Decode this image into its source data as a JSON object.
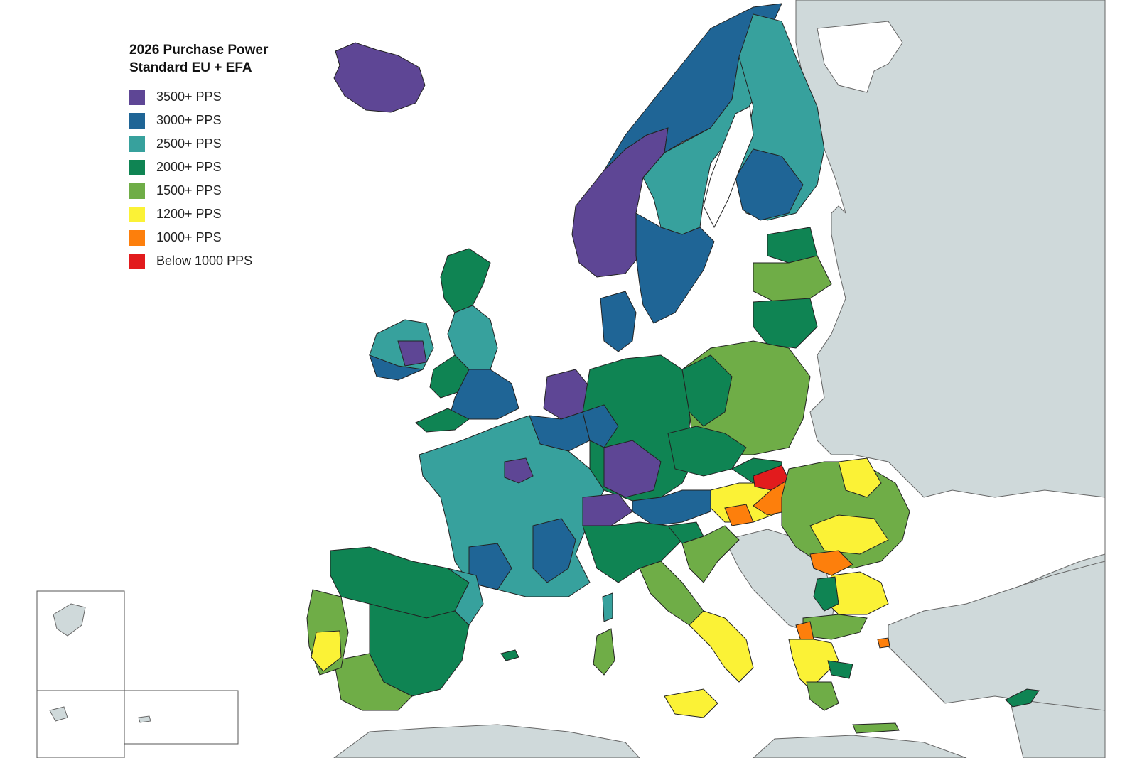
{
  "legend": {
    "title_line1": "2026 Purchase Power",
    "title_line2": "Standard EU + EFA",
    "items": [
      {
        "label": "3500+ PPS",
        "color": "#5e4695"
      },
      {
        "label": "3000+ PPS",
        "color": "#1f6596"
      },
      {
        "label": "2500+ PPS",
        "color": "#37a19d"
      },
      {
        "label": "2000+ PPS",
        "color": "#0f8453"
      },
      {
        "label": "1500+ PPS",
        "color": "#6fad47"
      },
      {
        "label": "1200+ PPS",
        "color": "#fbf236"
      },
      {
        "label": "1000+ PPS",
        "color": "#fd7f0c"
      },
      {
        "label": "Below 1000 PPS",
        "color": "#e21b1d"
      }
    ]
  },
  "colors": {
    "sea": "#ffffff",
    "non_eu_land": "#cfd9da",
    "border": "#222222"
  }
}
